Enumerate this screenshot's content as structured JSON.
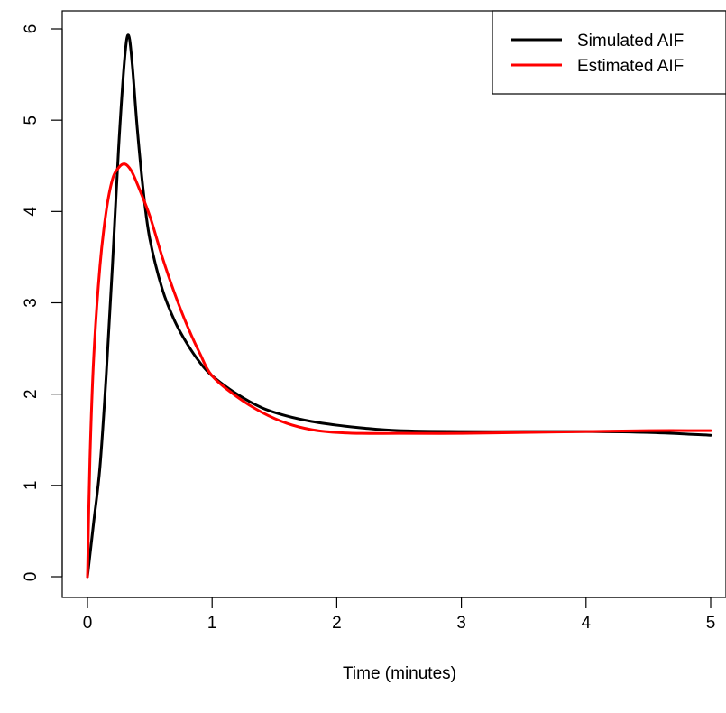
{
  "chart_data": {
    "type": "line",
    "title": "",
    "xlabel": "Time (minutes)",
    "ylabel": "",
    "xlim": [
      0,
      5
    ],
    "ylim": [
      0,
      6
    ],
    "grid": false,
    "legend_position": "top-right",
    "x_ticks": [
      "0",
      "1",
      "2",
      "3",
      "4",
      "5"
    ],
    "y_ticks": [
      "0",
      "1",
      "2",
      "3",
      "4",
      "5",
      "6"
    ],
    "series": [
      {
        "name": "Simulated AIF",
        "color": "#000000",
        "x": [
          0,
          0.05,
          0.1,
          0.15,
          0.2,
          0.25,
          0.3,
          0.33,
          0.36,
          0.4,
          0.45,
          0.5,
          0.6,
          0.7,
          0.8,
          0.9,
          1.0,
          1.2,
          1.4,
          1.6,
          1.8,
          2.0,
          2.2,
          2.5,
          3.0,
          3.5,
          4.0,
          4.5,
          5.0
        ],
        "y": [
          0,
          0.6,
          1.2,
          2.2,
          3.4,
          4.7,
          5.7,
          5.93,
          5.6,
          4.9,
          4.2,
          3.7,
          3.15,
          2.8,
          2.55,
          2.35,
          2.2,
          2.0,
          1.85,
          1.76,
          1.7,
          1.66,
          1.63,
          1.6,
          1.59,
          1.59,
          1.59,
          1.58,
          1.55
        ]
      },
      {
        "name": "Estimated AIF",
        "color": "#ff0000",
        "x": [
          0,
          0.02,
          0.05,
          0.1,
          0.15,
          0.2,
          0.25,
          0.3,
          0.35,
          0.4,
          0.5,
          0.6,
          0.7,
          0.8,
          0.9,
          1.0,
          1.2,
          1.4,
          1.6,
          1.8,
          2.0,
          2.2,
          2.5,
          3.0,
          3.5,
          4.0,
          4.5,
          5.0
        ],
        "y": [
          0,
          1.3,
          2.4,
          3.4,
          4.0,
          4.35,
          4.48,
          4.52,
          4.45,
          4.3,
          3.95,
          3.5,
          3.1,
          2.75,
          2.45,
          2.2,
          1.97,
          1.8,
          1.68,
          1.61,
          1.58,
          1.57,
          1.57,
          1.57,
          1.58,
          1.59,
          1.6,
          1.6
        ]
      }
    ]
  }
}
